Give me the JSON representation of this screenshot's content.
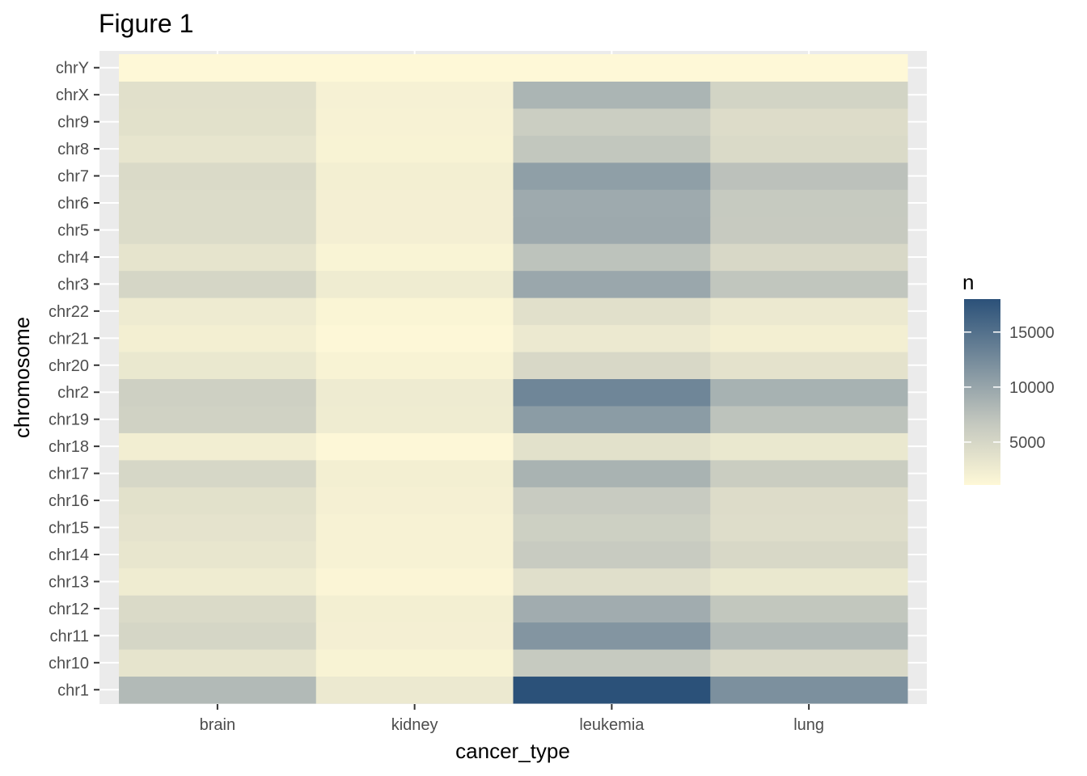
{
  "chart_data": {
    "type": "heatmap",
    "title": "Figure 1",
    "xlabel": "cancer_type",
    "ylabel": "chromosome",
    "x": [
      "brain",
      "kidney",
      "leukemia",
      "lung"
    ],
    "y": [
      "chr1",
      "chr10",
      "chr11",
      "chr12",
      "chr13",
      "chr14",
      "chr15",
      "chr16",
      "chr17",
      "chr18",
      "chr19",
      "chr2",
      "chr20",
      "chr21",
      "chr22",
      "chr3",
      "chr4",
      "chr5",
      "chr6",
      "chr7",
      "chr8",
      "chr9",
      "chrX",
      "chrY"
    ],
    "values": [
      [
        8000,
        2800,
        18000,
        12000
      ],
      [
        3400,
        1700,
        6500,
        4700
      ],
      [
        5000,
        2100,
        11500,
        8000
      ],
      [
        4600,
        2200,
        9300,
        6800
      ],
      [
        2500,
        1400,
        4000,
        3000
      ],
      [
        3200,
        1800,
        6300,
        4800
      ],
      [
        3500,
        1800,
        5800,
        4200
      ],
      [
        3800,
        2000,
        6300,
        4300
      ],
      [
        4900,
        2200,
        8700,
        6100
      ],
      [
        2300,
        1200,
        3800,
        3000
      ],
      [
        5500,
        2500,
        10900,
        7200
      ],
      [
        5700,
        2600,
        13000,
        8800
      ],
      [
        3000,
        1700,
        4800,
        3600
      ],
      [
        2200,
        1200,
        2800,
        2200
      ],
      [
        2600,
        1500,
        3900,
        2800
      ],
      [
        5000,
        2500,
        9800,
        6900
      ],
      [
        3400,
        1600,
        7200,
        4800
      ],
      [
        4400,
        2100,
        9600,
        6400
      ],
      [
        4400,
        2100,
        9500,
        6500
      ],
      [
        4600,
        2200,
        10600,
        7300
      ],
      [
        3300,
        1700,
        6800,
        4600
      ],
      [
        3800,
        1800,
        6000,
        4300
      ],
      [
        3900,
        1900,
        8500,
        5300
      ],
      [
        1100,
        1100,
        1100,
        1100
      ]
    ],
    "colorbar": {
      "title": "n",
      "range": [
        1100,
        18000
      ],
      "ticks": [
        5000,
        10000,
        15000
      ],
      "low_color": "#fef8d7",
      "mid_color": "#c4c8bf",
      "high_color": "#2b5179"
    },
    "legend_position": "right",
    "grid": true,
    "panel_color": "#ebebeb"
  }
}
